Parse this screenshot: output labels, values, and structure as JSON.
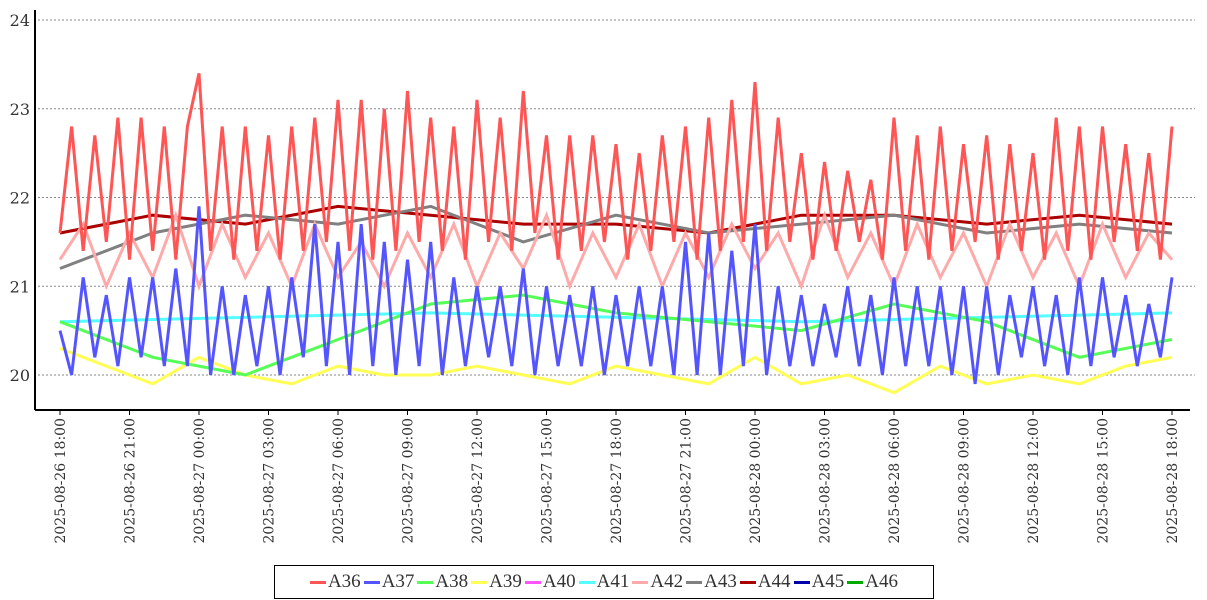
{
  "chart_data": {
    "type": "line",
    "title": "",
    "xlabel": "",
    "ylabel": "",
    "ylim": [
      19.6,
      24.1
    ],
    "yticks": [
      "20",
      "21",
      "22",
      "23",
      "24"
    ],
    "ytick_values": [
      20,
      21,
      22,
      23,
      24
    ],
    "grid": true,
    "legend_position": "bottom-center",
    "x_start": "2025-08-26 18:00",
    "x_range_hours": 48,
    "xticks": [
      "2025-08-26 18:00",
      "2025-08-26 21:00",
      "2025-08-27 00:00",
      "2025-08-27 03:00",
      "2025-08-27 06:00",
      "2025-08-27 09:00",
      "2025-08-27 12:00",
      "2025-08-27 15:00",
      "2025-08-27 18:00",
      "2025-08-27 21:00",
      "2025-08-28 00:00",
      "2025-08-28 03:00",
      "2025-08-28 06:00",
      "2025-08-28 09:00",
      "2025-08-28 12:00",
      "2025-08-28 15:00",
      "2025-08-28 18:00"
    ],
    "series": [
      {
        "name": "A36",
        "color": "#ff5555",
        "interval_minutes": 30,
        "values": [
          21.6,
          22.8,
          21.4,
          22.7,
          21.5,
          22.9,
          21.3,
          22.9,
          21.4,
          22.8,
          21.3,
          22.8,
          23.4,
          21.4,
          22.8,
          21.3,
          22.8,
          21.4,
          22.7,
          21.3,
          22.8,
          21.4,
          22.9,
          21.5,
          23.1,
          21.4,
          23.1,
          21.3,
          23.0,
          21.4,
          23.2,
          21.5,
          22.9,
          21.4,
          22.8,
          21.3,
          23.1,
          21.5,
          22.9,
          21.4,
          23.2,
          21.6,
          22.7,
          21.3,
          22.7,
          21.4,
          22.7,
          21.5,
          22.6,
          21.3,
          22.5,
          21.4,
          22.7,
          21.5,
          22.8,
          21.3,
          22.9,
          21.4,
          23.1,
          21.5,
          23.3,
          21.4,
          22.9,
          21.5,
          22.5,
          21.3,
          22.4,
          21.4,
          22.3,
          21.5,
          22.2,
          21.3,
          22.9,
          21.4,
          22.7,
          21.3,
          22.8,
          21.4,
          22.6,
          21.5,
          22.7,
          21.3,
          22.6,
          21.4,
          22.5,
          21.3,
          22.9,
          21.4,
          22.8,
          21.3,
          22.8,
          21.5,
          22.6,
          21.4,
          22.5,
          21.3,
          22.8
        ]
      },
      {
        "name": "A37",
        "color": "#5555ff",
        "interval_minutes": 30,
        "values": [
          20.5,
          20.0,
          21.1,
          20.2,
          20.9,
          20.1,
          21.1,
          20.2,
          21.1,
          20.1,
          21.2,
          20.1,
          21.9,
          20.0,
          21.0,
          20.0,
          20.9,
          20.1,
          21.0,
          20.0,
          21.1,
          20.2,
          21.7,
          20.1,
          21.5,
          20.0,
          21.7,
          20.1,
          21.5,
          20.0,
          21.3,
          20.1,
          21.5,
          20.0,
          21.1,
          20.1,
          21.0,
          20.2,
          21.0,
          20.1,
          21.2,
          20.0,
          21.0,
          20.1,
          20.9,
          20.1,
          21.0,
          20.0,
          20.9,
          20.1,
          21.0,
          20.1,
          21.0,
          20.0,
          21.5,
          20.0,
          21.6,
          20.0,
          21.4,
          20.1,
          21.7,
          20.0,
          21.0,
          20.1,
          20.9,
          20.1,
          20.8,
          20.2,
          21.0,
          20.1,
          20.9,
          20.0,
          21.1,
          20.1,
          21.0,
          20.1,
          21.0,
          20.0,
          21.0,
          19.9,
          21.0,
          20.0,
          20.9,
          20.2,
          21.0,
          20.1,
          20.9,
          20.0,
          21.1,
          20.1,
          21.1,
          20.2,
          20.9,
          20.1,
          20.8,
          20.2,
          21.1
        ]
      },
      {
        "name": "A38",
        "color": "#55ff55",
        "interval_minutes": 240,
        "values": [
          20.6,
          20.2,
          20.0,
          20.4,
          20.8,
          20.9,
          20.7,
          20.6,
          20.5,
          20.8,
          20.6,
          20.2,
          20.4
        ]
      },
      {
        "name": "A39",
        "color": "#ffff55",
        "interval_minutes": 120,
        "values": [
          20.3,
          20.1,
          19.9,
          20.2,
          20.0,
          19.9,
          20.1,
          20.0,
          20.0,
          20.1,
          20.0,
          19.9,
          20.1,
          20.0,
          19.9,
          20.2,
          19.9,
          20.0,
          19.8,
          20.1,
          19.9,
          20.0,
          19.9,
          20.1,
          20.2
        ]
      },
      {
        "name": "A40",
        "color": "#ff55ff",
        "interval_minutes": 60,
        "values": []
      },
      {
        "name": "A41",
        "color": "#55ffff",
        "interval_minutes": 960,
        "values": [
          20.6,
          20.7,
          20.6,
          20.7
        ]
      },
      {
        "name": "A42",
        "color": "#ffaaaa",
        "interval_minutes": 60,
        "values": [
          21.3,
          21.7,
          21.0,
          21.6,
          21.1,
          21.8,
          21.0,
          21.7,
          21.1,
          21.6,
          21.0,
          21.7,
          21.1,
          21.5,
          21.0,
          21.6,
          21.1,
          21.7,
          21.0,
          21.6,
          21.2,
          21.8,
          21.0,
          21.6,
          21.1,
          21.7,
          21.0,
          21.6,
          21.1,
          21.7,
          21.2,
          21.6,
          21.0,
          21.8,
          21.1,
          21.6,
          21.0,
          21.7,
          21.1,
          21.6,
          21.0,
          21.7,
          21.1,
          21.6,
          21.0,
          21.7,
          21.1,
          21.6,
          21.3
        ]
      },
      {
        "name": "A43",
        "color": "#808080",
        "interval_minutes": 240,
        "values": [
          21.2,
          21.6,
          21.8,
          21.7,
          21.9,
          21.5,
          21.8,
          21.6,
          21.7,
          21.8,
          21.6,
          21.7,
          21.6
        ]
      },
      {
        "name": "A44",
        "color": "#aa0000",
        "interval_minutes": 240,
        "values": [
          21.6,
          21.8,
          21.7,
          21.9,
          21.8,
          21.7,
          21.7,
          21.6,
          21.8,
          21.8,
          21.7,
          21.8,
          21.7
        ]
      },
      {
        "name": "A45",
        "color": "#0000aa",
        "interval_minutes": 60,
        "values": []
      },
      {
        "name": "A46",
        "color": "#00aa00",
        "interval_minutes": 60,
        "values": []
      }
    ]
  }
}
